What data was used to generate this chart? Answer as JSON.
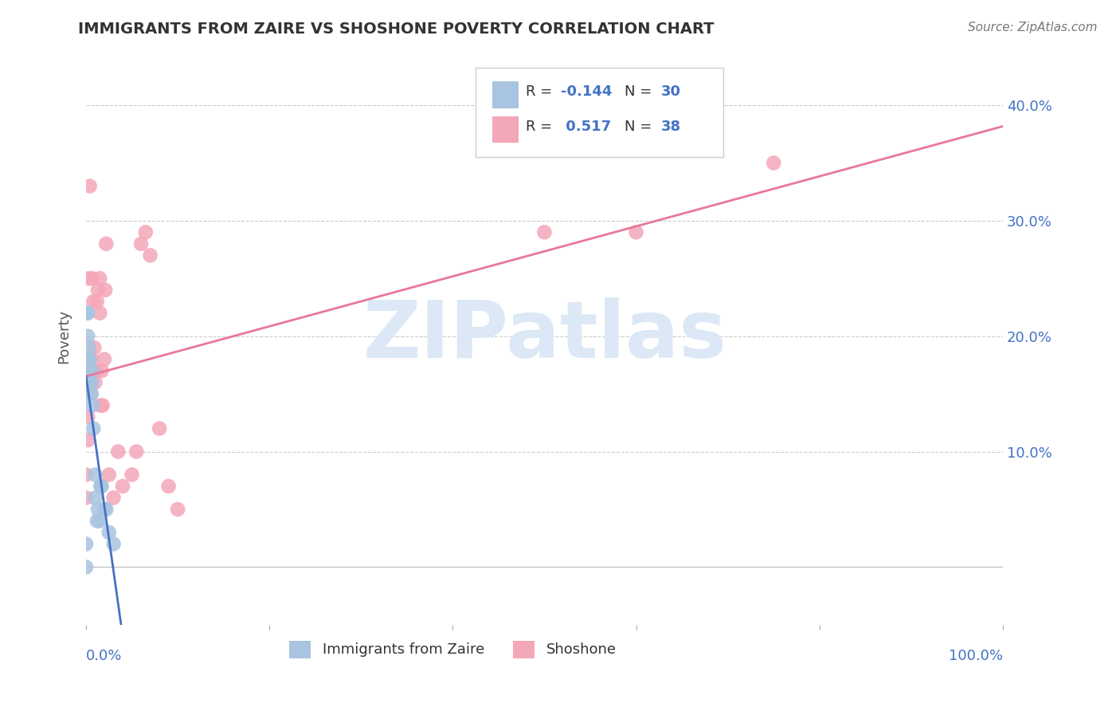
{
  "title": "IMMIGRANTS FROM ZAIRE VS SHOSHONE POVERTY CORRELATION CHART",
  "source": "Source: ZipAtlas.com",
  "ylabel": "Poverty",
  "yticks": [
    0.0,
    0.1,
    0.2,
    0.3,
    0.4
  ],
  "ytick_labels": [
    "",
    "10.0%",
    "20.0%",
    "30.0%",
    "40.0%"
  ],
  "xlim": [
    0.0,
    1.0
  ],
  "ylim": [
    -0.05,
    0.45
  ],
  "series1_name": "Immigrants from Zaire",
  "series1_color": "#a8c4e0",
  "series1_R": -0.144,
  "series1_N": 30,
  "series2_name": "Shoshone",
  "series2_color": "#f4a7b9",
  "series2_R": 0.517,
  "series2_N": 38,
  "legend_R_color": "#4472c4",
  "legend_N_color": "#4472c4",
  "title_color": "#333333",
  "axis_label_color": "#4472c4",
  "watermark": "ZIPatlas",
  "watermark_color": "#dce8f5",
  "series1_x": [
    0.0,
    0.0,
    0.001,
    0.001,
    0.002,
    0.002,
    0.002,
    0.003,
    0.003,
    0.003,
    0.004,
    0.004,
    0.005,
    0.005,
    0.006,
    0.006,
    0.006,
    0.007,
    0.008,
    0.01,
    0.01,
    0.012,
    0.013,
    0.015,
    0.016,
    0.017,
    0.02,
    0.022,
    0.025,
    0.03
  ],
  "series1_y": [
    0.0,
    0.02,
    0.15,
    0.22,
    0.18,
    0.2,
    0.22,
    0.17,
    0.18,
    0.19,
    0.17,
    0.18,
    0.16,
    0.17,
    0.17,
    0.15,
    0.16,
    0.14,
    0.12,
    0.08,
    0.06,
    0.04,
    0.05,
    0.04,
    0.07,
    0.07,
    0.05,
    0.05,
    0.03,
    0.02
  ],
  "series2_x": [
    0.0,
    0.0,
    0.002,
    0.002,
    0.003,
    0.004,
    0.005,
    0.006,
    0.007,
    0.008,
    0.009,
    0.01,
    0.011,
    0.012,
    0.013,
    0.015,
    0.015,
    0.016,
    0.017,
    0.018,
    0.02,
    0.021,
    0.022,
    0.025,
    0.03,
    0.035,
    0.04,
    0.05,
    0.055,
    0.06,
    0.065,
    0.07,
    0.08,
    0.09,
    0.1,
    0.5,
    0.6,
    0.75
  ],
  "series2_y": [
    0.06,
    0.08,
    0.11,
    0.13,
    0.25,
    0.33,
    0.15,
    0.18,
    0.25,
    0.23,
    0.19,
    0.16,
    0.17,
    0.23,
    0.24,
    0.22,
    0.25,
    0.14,
    0.17,
    0.14,
    0.18,
    0.24,
    0.28,
    0.08,
    0.06,
    0.1,
    0.07,
    0.08,
    0.1,
    0.28,
    0.29,
    0.27,
    0.12,
    0.07,
    0.05,
    0.29,
    0.29,
    0.35
  ]
}
